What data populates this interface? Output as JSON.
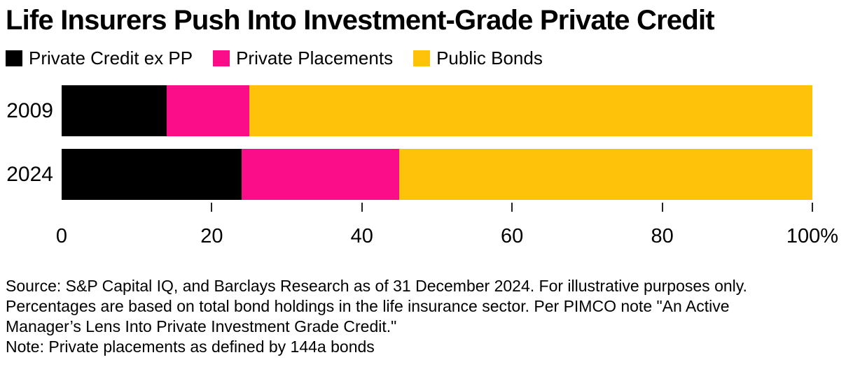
{
  "title": "Life Insurers Push Into Investment-Grade Private Credit",
  "colors": {
    "private_credit_ex_pp": "#000000",
    "private_placements": "#FB0D8A",
    "public_bonds": "#FFC20A"
  },
  "legend": [
    {
      "label": "Private Credit ex PP",
      "color": "#000000"
    },
    {
      "label": "Private Placements",
      "color": "#FB0D8A"
    },
    {
      "label": "Public Bonds",
      "color": "#FFC20A"
    }
  ],
  "chart_data": {
    "type": "bar",
    "orientation": "horizontal",
    "stacked": true,
    "unit": "percent",
    "categories": [
      "2009",
      "2024"
    ],
    "series": [
      {
        "name": "Private Credit ex PP",
        "color": "#000000",
        "values": [
          14,
          24
        ]
      },
      {
        "name": "Private Placements",
        "color": "#FB0D8A",
        "values": [
          11,
          21
        ]
      },
      {
        "name": "Public Bonds",
        "color": "#FFC20A",
        "values": [
          75,
          55
        ]
      }
    ],
    "xlim": [
      0,
      100
    ],
    "x_axis": {
      "ticks": [
        {
          "value": 0,
          "label": "0",
          "mark": false
        },
        {
          "value": 20,
          "label": "20",
          "mark": true
        },
        {
          "value": 40,
          "label": "40",
          "mark": true
        },
        {
          "value": 60,
          "label": "60",
          "mark": true
        },
        {
          "value": 80,
          "label": "80",
          "mark": true
        },
        {
          "value": 100,
          "label": "100%",
          "mark": true
        }
      ]
    },
    "grid": false,
    "legend_position": "top"
  },
  "footnote": {
    "lines": [
      "Source: S&P Capital IQ, and Barclays Research as of 31 December 2024. For illustrative purposes only.",
      "Percentages are based on total bond holdings in the life insurance sector. Per PIMCO note \"An Active",
      "Manager’s Lens Into Private Investment Grade Credit.\"",
      "Note: Private placements as defined by 144a bonds"
    ]
  }
}
